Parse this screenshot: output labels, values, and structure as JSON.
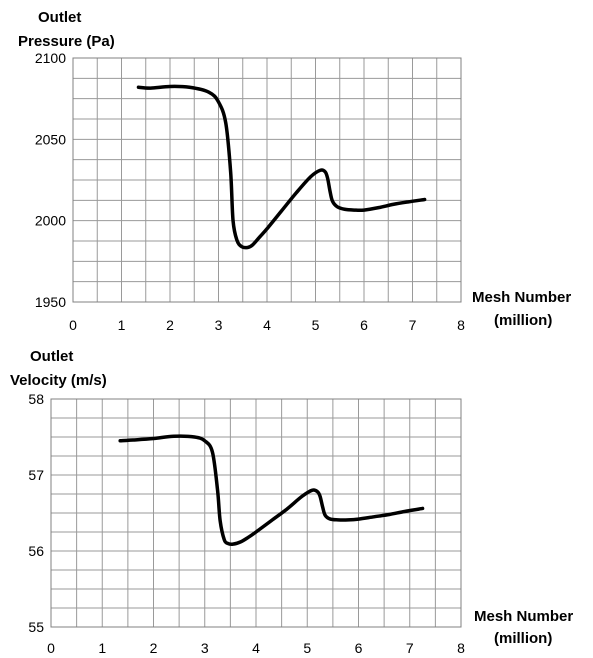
{
  "chart_data": [
    {
      "type": "line",
      "ylabel_lines": [
        "Outlet",
        "Pressure (Pa)"
      ],
      "xlabel_lines": [
        "Mesh Number",
        "(million)"
      ],
      "xlim": [
        0,
        8
      ],
      "ylim": [
        1950,
        2100
      ],
      "x_ticks": [
        "0",
        "1",
        "2",
        "3",
        "4",
        "5",
        "6",
        "7",
        "8"
      ],
      "y_ticks": [
        "2100",
        "2050",
        "2000",
        "1950"
      ],
      "grid": true,
      "series": [
        {
          "x": [
            1.35,
            1.6,
            2.0,
            2.4,
            2.8,
            3.0,
            3.15,
            3.25,
            3.3,
            3.38,
            3.48,
            3.6,
            3.7,
            3.85,
            4.0,
            4.3,
            4.6,
            4.9,
            5.1,
            5.2,
            5.25,
            5.3,
            5.35,
            5.45,
            5.6,
            5.8,
            6.0,
            6.3,
            6.6,
            6.9,
            7.25
          ],
          "y": [
            2082,
            2081.5,
            2082.5,
            2082,
            2079,
            2073,
            2060,
            2030,
            2000,
            1988,
            1984,
            1983.5,
            1985,
            1990,
            1995,
            2006,
            2017,
            2027,
            2031,
            2030,
            2026,
            2018,
            2012,
            2008.5,
            2007,
            2006.5,
            2006.5,
            2008,
            2010,
            2011.5,
            2013
          ]
        }
      ]
    },
    {
      "type": "line",
      "ylabel_lines": [
        "Outlet",
        "Velocity (m/s)"
      ],
      "xlabel_lines": [
        "Mesh Number",
        "(million)"
      ],
      "xlim": [
        0,
        8
      ],
      "ylim": [
        55,
        58
      ],
      "x_ticks": [
        "0",
        "1",
        "2",
        "3",
        "4",
        "5",
        "6",
        "7",
        "8"
      ],
      "y_ticks": [
        "58",
        "57",
        "56",
        "55"
      ],
      "grid": true,
      "series": [
        {
          "x": [
            1.35,
            1.6,
            2.0,
            2.4,
            2.8,
            3.0,
            3.15,
            3.25,
            3.3,
            3.38,
            3.45,
            3.55,
            3.7,
            3.85,
            4.0,
            4.3,
            4.6,
            4.9,
            5.1,
            5.2,
            5.25,
            5.3,
            5.35,
            5.45,
            5.6,
            5.8,
            6.0,
            6.3,
            6.6,
            6.9,
            7.25
          ],
          "y": [
            57.45,
            57.46,
            57.48,
            57.51,
            57.5,
            57.45,
            57.3,
            56.8,
            56.4,
            56.15,
            56.1,
            56.09,
            56.12,
            56.18,
            56.25,
            56.4,
            56.55,
            56.72,
            56.8,
            56.78,
            56.72,
            56.58,
            56.47,
            56.42,
            56.41,
            56.41,
            56.42,
            56.45,
            56.48,
            56.52,
            56.56
          ]
        }
      ]
    }
  ]
}
